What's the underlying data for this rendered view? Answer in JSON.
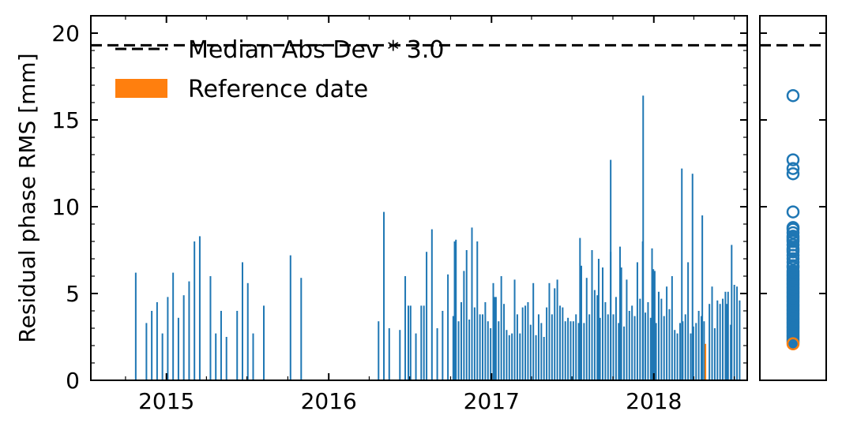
{
  "chart_data": [
    {
      "type": "bar",
      "ylabel": "Residual phase RMS [mm]",
      "xlabel": "",
      "ylim": [
        0,
        21
      ],
      "xlim": [
        "2014-07-15",
        "2018-07-30"
      ],
      "yticks": [
        "0",
        "5",
        "10",
        "15",
        "20"
      ],
      "xticks": [
        {
          "date": "2015-01-01",
          "label": "2015"
        },
        {
          "date": "2016-01-01",
          "label": "2016"
        },
        {
          "date": "2017-01-01",
          "label": "2017"
        },
        {
          "date": "2018-01-01",
          "label": "2018"
        }
      ],
      "threshold": {
        "value": 19.3,
        "label": "Median Abs Dev * 3.0",
        "style": "dashed",
        "color": "#000000"
      },
      "reference": {
        "date": "2018-04-27",
        "value": 2.1,
        "label": "Reference date",
        "color": "#ff7f0e"
      },
      "bar_color": "#1f77b4",
      "legend_position": "upper-left",
      "series": [
        {
          "dates": [
            "2014-10-24",
            "2014-11-17",
            "2014-11-29",
            "2014-12-11",
            "2014-12-23",
            "2015-01-04",
            "2015-01-16",
            "2015-01-28",
            "2015-02-09",
            "2015-02-21",
            "2015-03-05",
            "2015-03-17",
            "2015-04-10",
            "2015-04-22",
            "2015-05-04",
            "2015-05-16",
            "2015-06-09",
            "2015-06-21",
            "2015-07-03",
            "2015-07-15",
            "2015-08-08",
            "2015-10-07",
            "2015-10-31",
            "2016-04-22",
            "2016-05-04",
            "2016-05-16",
            "2016-06-09",
            "2016-06-21",
            "2016-07-03",
            "2016-07-15",
            "2016-07-27",
            "2016-08-08",
            "2016-08-20",
            "2016-09-01",
            "2016-09-13",
            "2016-09-25",
            "2016-10-07",
            "2016-10-13",
            "2016-10-19",
            "2016-10-25",
            "2016-10-31",
            "2016-11-06",
            "2016-11-12",
            "2016-11-18",
            "2016-11-24",
            "2016-11-30",
            "2016-12-06",
            "2016-12-12",
            "2016-12-18",
            "2016-12-24",
            "2016-12-30",
            "2017-01-05",
            "2017-01-11",
            "2017-01-17",
            "2017-01-23",
            "2017-01-29",
            "2017-02-04",
            "2017-02-10",
            "2017-02-16",
            "2017-02-22",
            "2017-02-28",
            "2017-03-06",
            "2017-03-12",
            "2017-03-18",
            "2017-03-24",
            "2017-03-30",
            "2017-04-05",
            "2017-04-11",
            "2017-04-17",
            "2017-04-23",
            "2017-04-29",
            "2017-05-05",
            "2017-05-11",
            "2017-05-17",
            "2017-05-23",
            "2017-05-29",
            "2017-06-04",
            "2017-06-10",
            "2017-06-16",
            "2017-06-22",
            "2017-06-28",
            "2017-07-04",
            "2017-07-10",
            "2017-07-16",
            "2017-07-22",
            "2017-07-28",
            "2017-08-03",
            "2017-08-09",
            "2017-08-15",
            "2017-08-21",
            "2017-08-27",
            "2017-09-02",
            "2017-09-08",
            "2017-09-14",
            "2017-09-20",
            "2017-09-26",
            "2017-10-02",
            "2017-10-08",
            "2017-10-14",
            "2017-10-20",
            "2017-10-26",
            "2017-11-01",
            "2017-11-07",
            "2017-11-13",
            "2017-11-19",
            "2017-11-25",
            "2017-12-01",
            "2017-12-07",
            "2017-12-13",
            "2017-12-19",
            "2017-12-25",
            "2017-12-31",
            "2018-01-06",
            "2018-01-12",
            "2018-01-18",
            "2018-01-24",
            "2018-01-30",
            "2018-02-05",
            "2018-02-11",
            "2018-02-17",
            "2018-02-23",
            "2018-03-01",
            "2018-03-07",
            "2018-03-13",
            "2018-03-19",
            "2018-03-25",
            "2018-03-31",
            "2018-04-06",
            "2018-04-12",
            "2018-04-18",
            "2018-04-24",
            "2018-05-06",
            "2018-05-12",
            "2018-05-18",
            "2018-05-24",
            "2018-05-30",
            "2018-06-05",
            "2018-06-11",
            "2018-06-17",
            "2018-06-23"
          ],
          "values": [
            6.2,
            3.3,
            4.0,
            4.5,
            2.7,
            4.8,
            6.2,
            3.6,
            4.9,
            5.7,
            8.0,
            8.3,
            6.0,
            2.7,
            4.0,
            2.5,
            4.0,
            6.8,
            5.6,
            2.7,
            4.3,
            7.2,
            5.9,
            3.4,
            9.7,
            3.0,
            2.9,
            6.0,
            4.3,
            2.7,
            4.3,
            7.4,
            8.7,
            3.0,
            4.0,
            6.1,
            3.7,
            8.1,
            3.4,
            4.5,
            6.3,
            7.5,
            3.5,
            8.8,
            4.2,
            8.0,
            3.8,
            3.8,
            4.5,
            3.4,
            3.0,
            5.6,
            4.8,
            3.4,
            6.0,
            4.4,
            2.9,
            2.6,
            2.7,
            5.8,
            3.8,
            2.7,
            4.2,
            4.3,
            4.5,
            3.2,
            5.6,
            2.6,
            3.8,
            3.3,
            2.5,
            4.2,
            5.6,
            3.8,
            5.3,
            5.8,
            4.3,
            4.2,
            3.4,
            3.6,
            3.4,
            3.4,
            3.8,
            3.3,
            6.6,
            3.3,
            5.9,
            3.8,
            7.5,
            5.2,
            4.9,
            3.6,
            6.5,
            4.5,
            3.8,
            7.4,
            3.8,
            4.8,
            3.3,
            6.5,
            3.1,
            5.8,
            4.0,
            4.3,
            3.7,
            6.8,
            4.7,
            8.0,
            3.9,
            4.5,
            3.6,
            6.4,
            3.3,
            5.1,
            4.7,
            3.7,
            5.4,
            4.1,
            6.0,
            2.9,
            2.7,
            3.3,
            3.4,
            3.8,
            6.8,
            2.7,
            3.1,
            3.3,
            4.0,
            3.7,
            3.4,
            4.4,
            5.4,
            3.0,
            4.6,
            4.4,
            4.7,
            5.1,
            5.1,
            3.2
          ],
          "extra_dates": [
            "2017-09-26",
            "2017-12-08",
            "2018-03-05",
            "2018-03-29",
            "2018-06-25",
            "2018-07-01",
            "2018-07-07",
            "2018-07-13",
            "2016-06-28",
            "2016-08-02",
            "2016-10-10",
            "2017-01-08",
            "2017-07-19",
            "2017-08-30",
            "2017-10-17",
            "2017-12-28",
            "2018-01-03",
            "2018-04-20",
            "2018-06-14"
          ],
          "extra_values": [
            12.7,
            16.4,
            12.2,
            11.9,
            7.8,
            5.5,
            5.4,
            4.6,
            4.3,
            4.3,
            8.0,
            4.8,
            8.2,
            7.0,
            7.7,
            7.6,
            6.3,
            9.5,
            4.4
          ]
        }
      ]
    },
    {
      "type": "scatter",
      "marker": "open-circle",
      "ylim": [
        0,
        21
      ],
      "threshold": {
        "value": 19.3,
        "style": "dashed"
      },
      "values": [
        16.4,
        12.7,
        12.2,
        11.9,
        9.7,
        8.8,
        8.7,
        8.5,
        8.3,
        8.2,
        8.1,
        8.0,
        7.8,
        7.6,
        7.5,
        7.4,
        7.2,
        7.0,
        6.8,
        6.6,
        6.5,
        6.3,
        6.2,
        6.1,
        6.0,
        5.9,
        5.8,
        5.7,
        5.6,
        5.5,
        5.4,
        5.3,
        5.2,
        5.1,
        5.0,
        4.9,
        4.8,
        4.7,
        4.6,
        4.5,
        4.4,
        4.3,
        4.2,
        4.1,
        4.0,
        3.9,
        3.8,
        3.7,
        3.6,
        3.5,
        3.4,
        3.3,
        3.2,
        3.1,
        3.0,
        2.9,
        2.8,
        2.7,
        2.6,
        2.5,
        2.4,
        2.3,
        2.2
      ],
      "reference_value": 2.1,
      "point_color": "#1f77b4",
      "reference_color": "#ff7f0e"
    }
  ]
}
